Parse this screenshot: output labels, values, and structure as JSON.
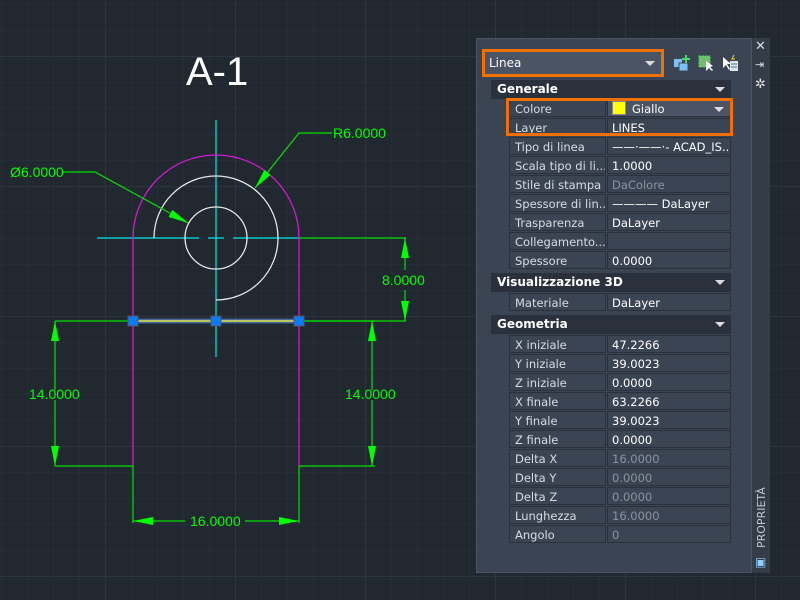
{
  "drawing": {
    "title": "A-1",
    "dims": {
      "diameter": "Ø6.0000",
      "radius": "R6.0000",
      "height_top": "8.0000",
      "left_height": "14.0000",
      "right_height": "14.0000",
      "width": "16.0000"
    }
  },
  "panel": {
    "object_type": "Linea",
    "toolbar": [
      "add-selection-icon",
      "quick-select-icon",
      "toggle-pickadd-icon"
    ],
    "sections": {
      "general": {
        "title": "Generale",
        "rows": [
          {
            "label": "Colore",
            "value": "Giallo",
            "color": "#ffff00"
          },
          {
            "label": "Layer",
            "value": "LINES"
          },
          {
            "label": "Tipo di linea",
            "value": "——·——·- ACAD_IS..."
          },
          {
            "label": "Scala tipo di li...",
            "value": "1.0000"
          },
          {
            "label": "Stile di stampa",
            "value": "DaColore"
          },
          {
            "label": "Spessore di lin...",
            "value": "———— DaLayer"
          },
          {
            "label": "Trasparenza",
            "value": "DaLayer"
          },
          {
            "label": "Collegamento...",
            "value": ""
          },
          {
            "label": "Spessore",
            "value": "0.0000"
          }
        ]
      },
      "view3d": {
        "title": "Visualizzazione 3D",
        "rows": [
          {
            "label": "Materiale",
            "value": "DaLayer"
          }
        ]
      },
      "geometry": {
        "title": "Geometria",
        "rows": [
          {
            "label": "X iniziale",
            "value": "47.2266"
          },
          {
            "label": "Y iniziale",
            "value": "39.0023"
          },
          {
            "label": "Z iniziale",
            "value": "0.0000"
          },
          {
            "label": "X finale",
            "value": "63.2266"
          },
          {
            "label": "Y finale",
            "value": "39.0023"
          },
          {
            "label": "Z finale",
            "value": "0.0000"
          },
          {
            "label": "Delta X",
            "value": "16.0000"
          },
          {
            "label": "Delta Y",
            "value": "0.0000"
          },
          {
            "label": "Delta Z",
            "value": "0.0000"
          },
          {
            "label": "Lunghezza",
            "value": "16.0000"
          },
          {
            "label": "Angolo",
            "value": "0"
          }
        ]
      }
    },
    "side_label": "PROPRIETÀ",
    "highlight_color": "#f07000"
  }
}
